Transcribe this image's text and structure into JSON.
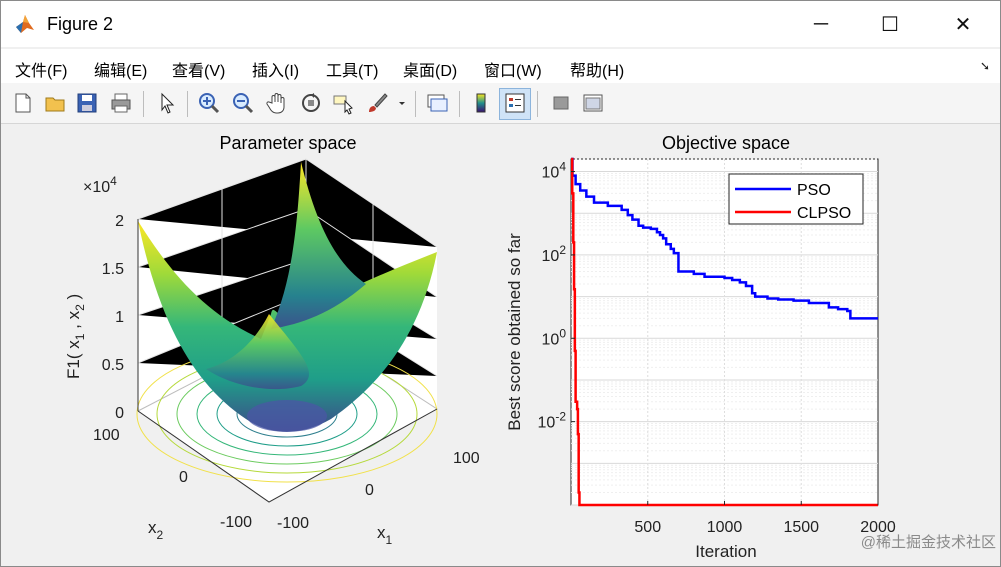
{
  "window": {
    "title": "Figure 2"
  },
  "controls": {
    "minimize": "─",
    "maximize": "☐",
    "close": "✕"
  },
  "menu": [
    {
      "label": "文件(F)"
    },
    {
      "label": "编辑(E)"
    },
    {
      "label": "查看(V)"
    },
    {
      "label": "插入(I)"
    },
    {
      "label": "工具(T)"
    },
    {
      "label": "桌面(D)"
    },
    {
      "label": "窗口(W)"
    },
    {
      "label": "帮助(H)"
    }
  ],
  "toolbar": [
    "new-figure-icon",
    "open-icon",
    "save-icon",
    "print-icon",
    "pointer-icon",
    "zoom-in-icon",
    "zoom-out-icon",
    "pan-icon",
    "rotate-3d-icon",
    "data-cursor-icon",
    "brush-icon",
    "link-plot-icon",
    "colorbar-icon",
    "legend-icon",
    "hide-tools-icon",
    "dock-icon"
  ],
  "left_plot": {
    "title": "Parameter space",
    "zlabel": "F1( x",
    "zlabel_sub1": "1",
    "zlabel_mid": " , x",
    "zlabel_sub2": "2",
    "zlabel_end": " )",
    "zscale": "×10",
    "zscale_exp": "4",
    "zticks": [
      "2",
      "1.5",
      "1",
      "0.5",
      "0"
    ],
    "x2_ticks": [
      "100",
      "0",
      "-100"
    ],
    "x1_ticks": [
      "-100",
      "0",
      "100"
    ],
    "x1_label": "x",
    "x1_sub": "1",
    "x2_label": "x",
    "x2_sub": "2"
  },
  "chart_data": {
    "type": "line",
    "title": "Objective space",
    "xlabel": "Iteration",
    "ylabel": "Best score obtained so far",
    "yscale": "log",
    "xlim": [
      0,
      2000
    ],
    "ylim": [
      0.0001,
      20000
    ],
    "xticks": [
      "500",
      "1000",
      "1500",
      "2000"
    ],
    "yticks": [
      {
        "base": "10",
        "exp": "4"
      },
      {
        "base": "10",
        "exp": "2"
      },
      {
        "base": "10",
        "exp": "0"
      },
      {
        "base": "10",
        "exp": "-2"
      }
    ],
    "legend_position": "top-right",
    "series": [
      {
        "name": "PSO",
        "color": "#0000ff",
        "points": [
          [
            1,
            20000
          ],
          [
            10,
            8000
          ],
          [
            30,
            5000
          ],
          [
            60,
            3500
          ],
          [
            100,
            2500
          ],
          [
            150,
            1800
          ],
          [
            240,
            1500
          ],
          [
            300,
            1500
          ],
          [
            330,
            1200
          ],
          [
            370,
            900
          ],
          [
            400,
            700
          ],
          [
            440,
            500
          ],
          [
            470,
            450
          ],
          [
            520,
            420
          ],
          [
            560,
            350
          ],
          [
            580,
            300
          ],
          [
            600,
            250
          ],
          [
            620,
            180
          ],
          [
            650,
            140
          ],
          [
            670,
            110
          ],
          [
            700,
            40
          ],
          [
            750,
            40
          ],
          [
            800,
            35
          ],
          [
            870,
            30
          ],
          [
            950,
            30
          ],
          [
            1000,
            28
          ],
          [
            1050,
            25
          ],
          [
            1100,
            22
          ],
          [
            1140,
            18
          ],
          [
            1180,
            12
          ],
          [
            1200,
            10
          ],
          [
            1280,
            9
          ],
          [
            1350,
            8.5
          ],
          [
            1450,
            8
          ],
          [
            1500,
            8
          ],
          [
            1550,
            7
          ],
          [
            1680,
            5.5
          ],
          [
            1740,
            5
          ],
          [
            1800,
            4.5
          ],
          [
            1820,
            3
          ],
          [
            2000,
            3
          ]
        ]
      },
      {
        "name": "CLPSO",
        "color": "#ff0000",
        "points": [
          [
            1,
            20000
          ],
          [
            8,
            3000
          ],
          [
            15,
            200
          ],
          [
            20,
            15
          ],
          [
            25,
            0.5
          ],
          [
            30,
            0.03
          ],
          [
            40,
            0.02
          ],
          [
            45,
            0.005
          ],
          [
            50,
            0.0002
          ],
          [
            55,
            0.0001
          ],
          [
            2000,
            0.0001
          ]
        ]
      }
    ]
  },
  "watermark": "@稀土掘金技术社区"
}
